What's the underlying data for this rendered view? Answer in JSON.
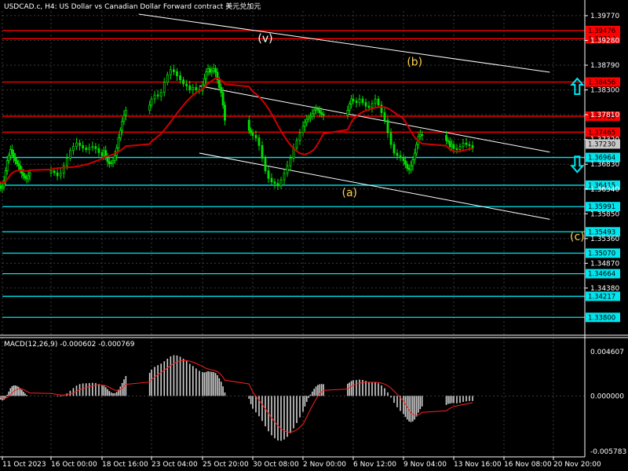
{
  "header": {
    "title": "USDCAD.c, H4:  US Dollar vs Canadian Dollar Forward contract  美元兑加元",
    "macd_label": "MACD(12,26,9) -0.000602 -0.000769"
  },
  "colors": {
    "background": "#000000",
    "candle": "#00e000",
    "resistance": "#ff0000",
    "support": "#00e5ee",
    "ma": "#d00000",
    "channel": "#ffffff",
    "wave_white": "#ffffff",
    "wave_yellow": "#ffd24a",
    "arrow": "#00e5ee",
    "macd_hist": "#d0d0d0",
    "macd_signal": "#ff2020",
    "current_price_bg": "#c8c8c8"
  },
  "chart_data": [
    {
      "type": "candlestick",
      "symbol": "USDCAD.c",
      "timeframe": "H4",
      "ylim": [
        1.3368,
        1.398
      ],
      "y_ticks": [
        "1.39770",
        "1.39280",
        "1.38790",
        "1.38300",
        "1.37810",
        "1.37320",
        "1.36830",
        "1.36340",
        "1.35850",
        "1.35360",
        "1.34870",
        "1.34380"
      ],
      "x_ticks": [
        "11 Oct 2023",
        "16 Oct 00:00",
        "18 Oct 16:00",
        "23 Oct 04:00",
        "25 Oct 20:00",
        "30 Oct 08:00",
        "2 Nov 00:00",
        "6 Nov 12:00",
        "9 Nov 04:00",
        "13 Nov 16:00",
        "16 Nov 08:00",
        "20 Nov 20:00"
      ],
      "current_price": "1.37230",
      "resistance_levels": [
        "1.39476",
        "1.39314",
        "1.38456",
        "1.37780",
        "1.37465"
      ],
      "support_levels": [
        "1.36964",
        "1.36415",
        "1.35991",
        "1.35493",
        "1.35070",
        "1.34664",
        "1.34217",
        "1.33800"
      ],
      "wave_labels": [
        {
          "text": "(v)",
          "date": "31 Oct 00:00",
          "price": 1.3925,
          "color": "white"
        },
        {
          "text": "(a)",
          "date": "6 Nov 04:00",
          "price": 1.362,
          "color": "yellow"
        },
        {
          "text": "(b)",
          "date": "10 Nov 04:00",
          "price": 1.3878,
          "color": "yellow"
        },
        {
          "text": "(c)",
          "date": "23 Nov 00:00",
          "price": 1.3533,
          "color": "yellow"
        }
      ],
      "arrows": [
        {
          "direction": "up",
          "date": "23 Nov 00:00",
          "price": 1.3837
        },
        {
          "direction": "down",
          "date": "23 Nov 00:00",
          "price": 1.3683
        }
      ],
      "closes": [
        1.3658,
        1.3655,
        1.3652,
        1.3645,
        1.364,
        1.3635,
        1.3638,
        1.365,
        1.367,
        1.369,
        1.37,
        1.3712,
        1.3705,
        1.3696,
        1.369,
        1.3684,
        1.368,
        1.3672,
        1.3665,
        1.366,
        1.3656,
        1.3654,
        1.366,
        1.3666,
        1.367,
        1.3666,
        1.366,
        1.3665,
        1.368,
        1.3695,
        1.371,
        1.3718,
        1.3725,
        1.372,
        1.3715,
        1.3712,
        1.3716,
        1.3718,
        1.3714,
        1.3706,
        1.37,
        1.371,
        1.3698,
        1.3688,
        1.3684,
        1.3686,
        1.369,
        1.37,
        1.3715,
        1.3735,
        1.375,
        1.3768,
        1.378,
        1.379,
        1.38,
        1.3812,
        1.382,
        1.3818,
        1.3825,
        1.3845,
        1.386,
        1.387,
        1.3866,
        1.3858,
        1.385,
        1.3842,
        1.3838,
        1.383,
        1.3835,
        1.383,
        1.3828,
        1.384,
        1.3852,
        1.3866,
        1.3872,
        1.3865,
        1.3868,
        1.3872,
        1.3865,
        1.385,
        1.3835,
        1.3825,
        1.38,
        1.377,
        1.375,
        1.3745,
        1.374,
        1.3735,
        1.372,
        1.3695,
        1.367,
        1.3655,
        1.3648,
        1.3645,
        1.364,
        1.3652,
        1.3665,
        1.368,
        1.3695,
        1.3715,
        1.373,
        1.3745,
        1.3758,
        1.3766,
        1.3772,
        1.3775,
        1.3778,
        1.3783,
        1.379,
        1.3792,
        1.379,
        1.3785,
        1.3782,
        1.378,
        1.379,
        1.3802,
        1.3812,
        1.3808,
        1.3805,
        1.3812,
        1.3805,
        1.3798,
        1.3795,
        1.3803,
        1.3812,
        1.38,
        1.3785,
        1.377,
        1.3745,
        1.3722,
        1.3705,
        1.37,
        1.3696,
        1.369,
        1.3683,
        1.3675,
        1.3672,
        1.368,
        1.3692,
        1.3705,
        1.3722,
        1.3738,
        1.3742,
        1.374,
        1.373,
        1.3728,
        1.3718,
        1.3722,
        1.3714,
        1.3712,
        1.3718,
        1.3725,
        1.3722,
        1.372,
        1.3715
      ]
    },
    {
      "type": "macd",
      "name": "MACD(12,26,9)",
      "values_label": [
        "-0.000602",
        "-0.000769"
      ],
      "ylim": [
        -0.005783,
        0.004607
      ],
      "y_ticks": [
        "0.004607",
        "0.000000",
        "-0.005783"
      ]
    }
  ]
}
